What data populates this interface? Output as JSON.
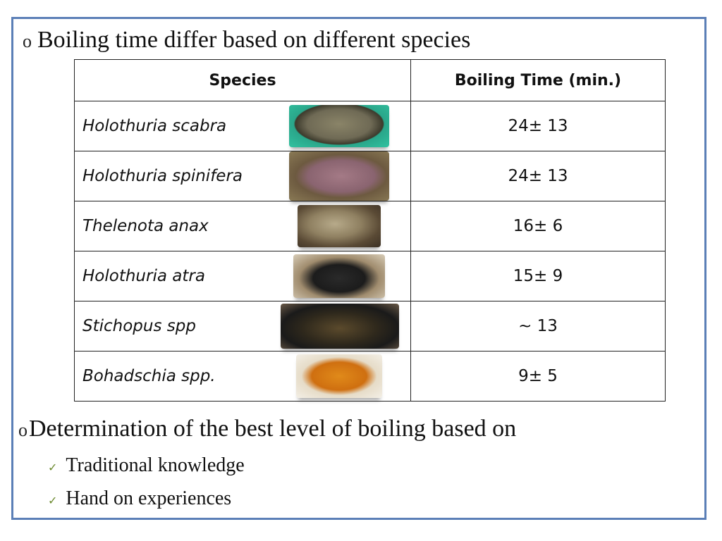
{
  "slide": {
    "bullet1": "Boiling time differ based on different species",
    "bullet_symbol": "o",
    "table": {
      "header": {
        "species": "Species",
        "time": "Boiling Time  (min.)"
      },
      "rows": [
        {
          "species": "Holothuria scabra",
          "time": "24± 13"
        },
        {
          "species": "Holothuria spinifera",
          "time": "24± 13"
        },
        {
          "species": "Thelenota anax",
          "time": "16± 6"
        },
        {
          "species": "Holothuria atra",
          "time": "15± 9"
        },
        {
          "species": "Stichopus spp",
          "time": "~ 13"
        },
        {
          "species": "Bohadschia spp.",
          "time": "9± 5"
        }
      ]
    },
    "bullet2": "Determination of the best level of boiling based on",
    "subitems": [
      "Traditional knowledge",
      "Hand on experiences"
    ],
    "check_symbol": "✓"
  }
}
